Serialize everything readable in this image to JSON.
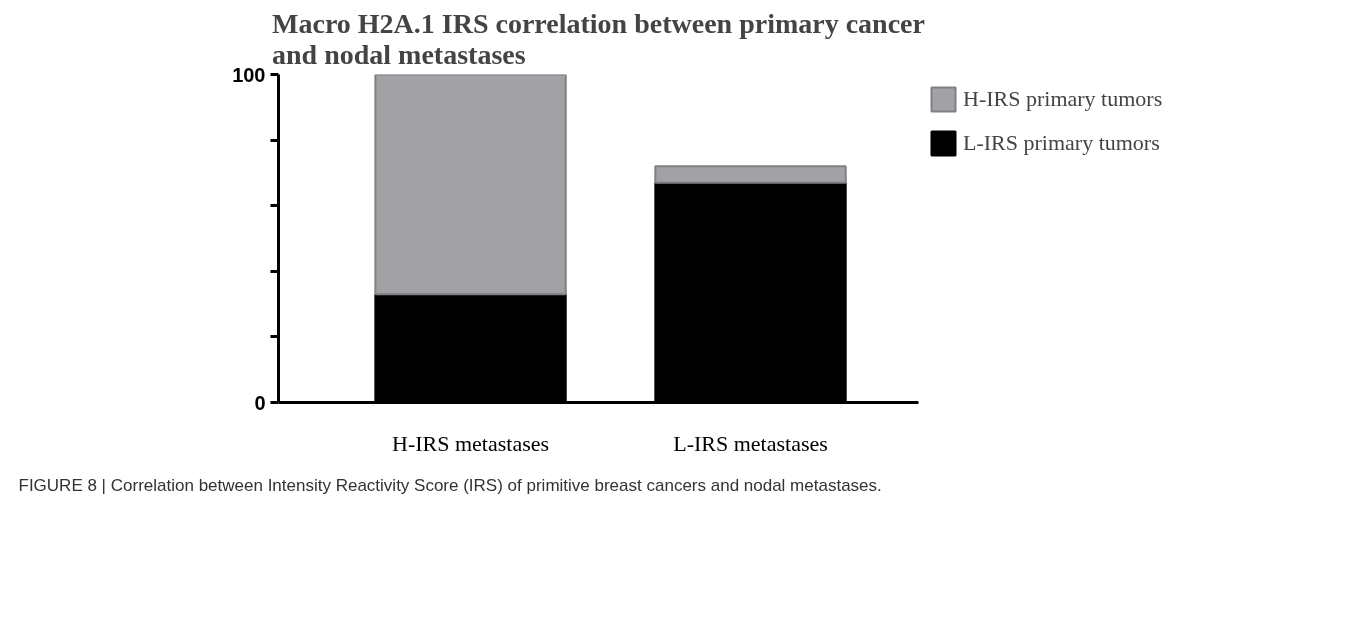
{
  "chart_data": {
    "type": "bar",
    "title": "Macro H2A.1 IRS correlation between primary cancer\nand nodal metastases",
    "categories": [
      "H-IRS metastases",
      "L-IRS metastases"
    ],
    "stacked": true,
    "series": [
      {
        "name": "L-IRS primary tumors",
        "color": "#000000",
        "values": [
          33,
          67
        ]
      },
      {
        "name": "H-IRS primary tumors",
        "color": "#a2a1a6",
        "values": [
          67,
          5
        ]
      }
    ],
    "ylim": [
      0,
      100
    ],
    "yticks": [
      0,
      {
        "value": 20,
        "label": null
      },
      {
        "value": 40,
        "label": null
      },
      {
        "value": 60,
        "label": null
      },
      {
        "value": 80,
        "label": null
      },
      100
    ],
    "grid": false,
    "legend": "top right",
    "annotations": [
      "FIGURE 8 | Correlation between Intensity Reactivity Score (IRS) of primitive breast cancers and nodal metastases."
    ]
  }
}
